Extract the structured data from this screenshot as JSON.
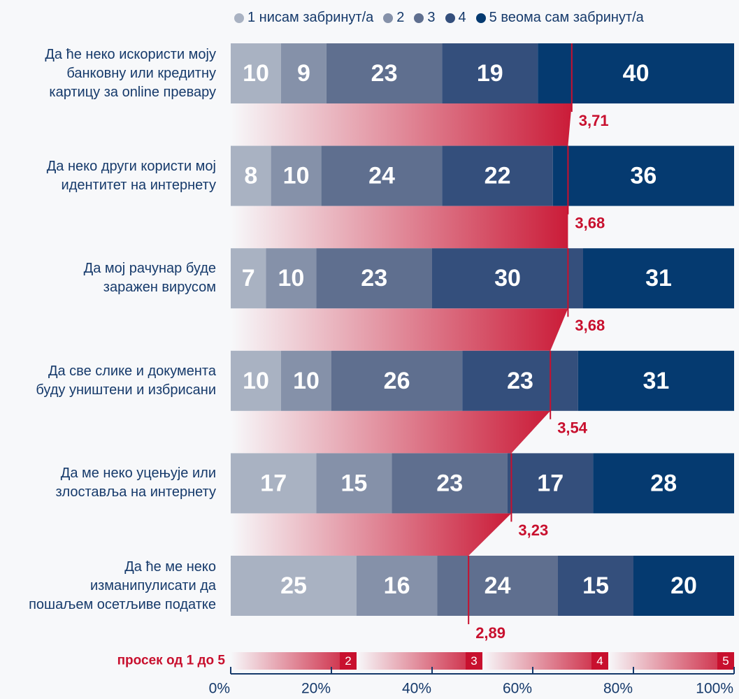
{
  "chart_data": {
    "type": "stacked-bar-horizontal",
    "categories": [
      "Да ће неко искористи моју\nбанковну или кредитну\nкартицу за online превару",
      "Да неко други користи мој\nидентитет на интернету",
      "Да мој рачунар буде\nзаражен вирусом",
      "Да све слике и документа\nбуду уништени и избрисани",
      "Да ме неко уцењује или\nзлоставља на интернету",
      "Да ће ме неко\nизманипулисати да\nпошаљем осетљиве податке"
    ],
    "series": [
      {
        "name": "1 нисам забринут/а",
        "color": "#a9b2c2",
        "values": [
          10,
          8,
          7,
          10,
          17,
          25
        ]
      },
      {
        "name": "2",
        "color": "#8591a9",
        "values": [
          9,
          10,
          10,
          10,
          15,
          16
        ]
      },
      {
        "name": "3",
        "color": "#5f6f8f",
        "values": [
          23,
          24,
          23,
          26,
          23,
          24
        ]
      },
      {
        "name": "4",
        "color": "#344f7c",
        "values": [
          19,
          22,
          30,
          23,
          17,
          15
        ]
      },
      {
        "name": "5 веома сам забринут/а",
        "color": "#053a70",
        "values": [
          40,
          36,
          31,
          31,
          28,
          20
        ]
      }
    ],
    "means": {
      "color": "#c8102e",
      "values": [
        3.71,
        3.68,
        3.68,
        3.54,
        3.23,
        2.89
      ],
      "value_labels": [
        "3,71",
        "3,68",
        "3,68",
        "3,54",
        "3,23",
        "2,89"
      ],
      "label": "просек од 1 до 5",
      "lim": [
        1,
        5
      ],
      "ticks": [
        2,
        3,
        4,
        5
      ]
    },
    "xlim": [
      0,
      100
    ],
    "xticks": [
      {
        "value": 0,
        "label": "0%"
      },
      {
        "value": 20,
        "label": "20%"
      },
      {
        "value": 40,
        "label": "40%"
      },
      {
        "value": 60,
        "label": "60%"
      },
      {
        "value": 80,
        "label": "80%"
      },
      {
        "value": 100,
        "label": "100%"
      }
    ]
  }
}
